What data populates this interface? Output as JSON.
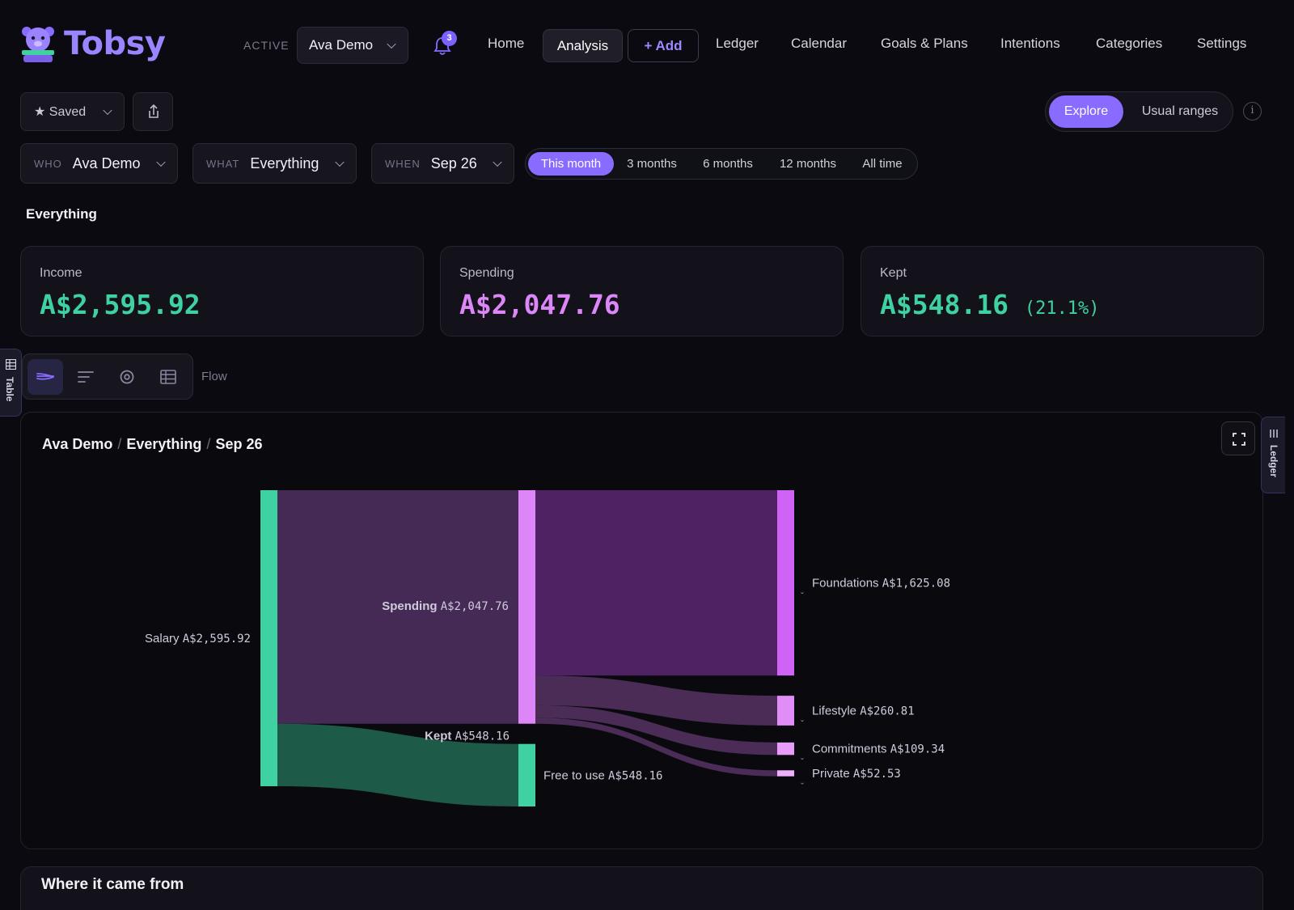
{
  "app": {
    "name": "Tobsy",
    "active_label": "ACTIVE",
    "active_profile": "Ava Demo",
    "notification_count": "3"
  },
  "nav": {
    "home": "Home",
    "analysis": "Analysis",
    "add": "+ Add",
    "ledger": "Ledger",
    "calendar": "Calendar",
    "goals": "Goals & Plans",
    "intentions": "Intentions",
    "categories": "Categories",
    "settings": "Settings"
  },
  "toolbar": {
    "saved": "★ Saved",
    "mode_explore": "Explore",
    "mode_usual": "Usual ranges",
    "info": "i"
  },
  "filters": {
    "who_label": "WHO",
    "who_value": "Ava Demo",
    "what_label": "WHAT",
    "what_value": "Everything",
    "when_label": "WHEN",
    "when_value": "Sep 26",
    "ranges": [
      "This month",
      "3 months",
      "6 months",
      "12 months",
      "All time"
    ],
    "selected_range": "This month"
  },
  "section_title": "Everything",
  "stats": {
    "income_label": "Income",
    "income_value": "A$2,595.92",
    "spending_label": "Spending",
    "spending_value": "A$2,047.76",
    "kept_label": "Kept",
    "kept_value": "A$548.16",
    "kept_pct": "(21.1%)"
  },
  "views": {
    "table_tab": "Table",
    "ledger_tab": "Ledger",
    "current_view": "Flow",
    "icons": [
      "flow-icon",
      "bars-icon",
      "donut-icon",
      "table-icon"
    ]
  },
  "panel": {
    "crumb_who": "Ava Demo",
    "crumb_what": "Everything",
    "crumb_when": "Sep 26"
  },
  "chart_data": {
    "type": "sankey",
    "sources": [
      {
        "name": "Salary",
        "amount": "A$2,595.92",
        "value": 2595.92,
        "color": "#3fd1a2"
      }
    ],
    "middle": [
      {
        "name": "Spending",
        "amount": "A$2,047.76",
        "value": 2047.76,
        "color": "#dc86f7"
      },
      {
        "name": "Kept",
        "amount": "A$548.16",
        "value": 548.16,
        "color": "#3fd1a2"
      }
    ],
    "targets": [
      {
        "name": "Foundations",
        "amount": "A$1,625.08",
        "value": 1625.08,
        "from": "Spending",
        "color": "#cf63f5"
      },
      {
        "name": "Lifestyle",
        "amount": "A$260.81",
        "value": 260.81,
        "from": "Spending",
        "color": "#e08df8"
      },
      {
        "name": "Commitments",
        "amount": "A$109.34",
        "value": 109.34,
        "from": "Spending",
        "color": "#e79cf9"
      },
      {
        "name": "Private",
        "amount": "A$52.53",
        "value": 52.53,
        "from": "Spending",
        "color": "#eeb0fb"
      },
      {
        "name": "Free to use",
        "amount": "A$548.16",
        "value": 548.16,
        "from": "Kept",
        "color": "#3fd1a2"
      }
    ],
    "expand_marker": "ˬ"
  },
  "bottom": {
    "title": "Where it came from"
  }
}
